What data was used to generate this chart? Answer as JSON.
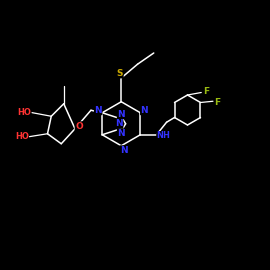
{
  "bg": "#000000",
  "bond_color": "#ffffff",
  "N_color": "#3333ff",
  "O_color": "#ff3333",
  "S_color": "#ccaa00",
  "F_color": "#99bb11",
  "font_size": 6.5,
  "lw": 1.1
}
